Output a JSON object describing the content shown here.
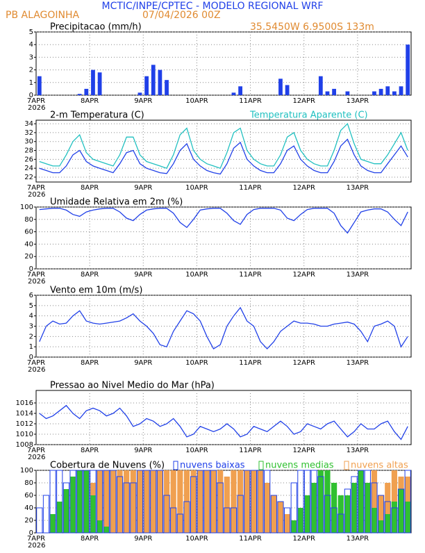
{
  "header": {
    "title": "MCTIC/INPE/CPTEC - MODELO REGIONAL WRF",
    "location": "PB ALAGOINHA",
    "date": "07/04/2026 00Z",
    "coords": "35.5450W 6.9500S 133m"
  },
  "chart_data": [
    {
      "type": "bar",
      "title": "Precipitacao (mm/h)",
      "color": "#2040e8",
      "ylim": [
        0,
        5
      ],
      "yticks": [
        0,
        1,
        2,
        3,
        4,
        5
      ],
      "grid": true,
      "year": "2026",
      "categories": [
        "7APR",
        null,
        null,
        null,
        null,
        null,
        null,
        null,
        "8APR",
        null,
        null,
        null,
        null,
        null,
        null,
        null,
        "9APR",
        null,
        null,
        null,
        null,
        null,
        null,
        null,
        "10APR",
        null,
        null,
        null,
        null,
        null,
        null,
        null,
        "11APR",
        null,
        null,
        null,
        null,
        null,
        null,
        null,
        "12APR",
        null,
        null,
        null,
        null,
        null,
        null,
        null,
        "13APR",
        null,
        null,
        null,
        null,
        null,
        null,
        null
      ],
      "values": [
        1.5,
        0,
        0,
        0,
        0,
        0,
        0.1,
        0.5,
        2,
        1.8,
        0,
        0,
        0,
        0,
        0,
        0.2,
        1.5,
        2.4,
        2,
        1.2,
        0,
        0,
        0,
        0,
        0,
        0,
        0,
        0,
        0,
        0.2,
        0.7,
        0,
        0,
        0,
        0,
        0,
        1.3,
        0.8,
        0,
        0,
        0,
        0,
        1.5,
        0.3,
        0.5,
        0,
        0.3,
        0,
        0,
        0,
        0.3,
        0.5,
        0.7,
        0.3,
        0.7,
        4
      ]
    },
    {
      "type": "line",
      "title": "2-m Temperatura (C)",
      "ylim": [
        20.9,
        34.8
      ],
      "yticks": [
        22,
        24,
        26,
        28,
        30,
        32,
        34
      ],
      "grid": true,
      "year": "2026",
      "categories": [
        "7APR",
        null,
        null,
        null,
        null,
        null,
        null,
        null,
        "8APR",
        null,
        null,
        null,
        null,
        null,
        null,
        null,
        "9APR",
        null,
        null,
        null,
        null,
        null,
        null,
        null,
        "10APR",
        null,
        null,
        null,
        null,
        null,
        null,
        null,
        "11APR",
        null,
        null,
        null,
        null,
        null,
        null,
        null,
        "12APR",
        null,
        null,
        null,
        null,
        null,
        null,
        null,
        "13APR",
        null,
        null,
        null,
        null,
        null,
        null,
        null
      ],
      "series": [
        {
          "color": "#2040e8",
          "values": [
            24,
            23.5,
            23,
            23,
            24.5,
            27,
            28,
            25.5,
            24.5,
            24,
            23.5,
            23,
            25,
            27.5,
            28,
            25,
            24,
            23.5,
            23,
            22.8,
            25,
            28,
            29.5,
            26,
            24.5,
            23.5,
            23,
            22.7,
            25,
            28.5,
            29.8,
            26,
            24.5,
            23.5,
            23,
            23,
            25,
            28,
            29,
            26,
            24.5,
            23.5,
            23,
            23,
            25.5,
            29,
            30.5,
            27,
            24.5,
            23.5,
            23,
            23,
            25,
            27,
            29,
            26.5
          ]
        },
        {
          "name": "Temperatura Aparente (C)",
          "color": "#20c0c0",
          "values": [
            25.5,
            25,
            24.5,
            24.5,
            27,
            30,
            31.5,
            27.5,
            26,
            25.5,
            25,
            24.5,
            27,
            31,
            31,
            27,
            25.5,
            25,
            24.5,
            24,
            27,
            31.5,
            33,
            28,
            26,
            25,
            24.5,
            24,
            27.5,
            32,
            33,
            28,
            26,
            25,
            24.5,
            24.5,
            27,
            31,
            32,
            28,
            26,
            25,
            24.5,
            24.5,
            28,
            32.5,
            34,
            29.5,
            26,
            25.5,
            25,
            25,
            27,
            29.5,
            32,
            28
          ]
        }
      ]
    },
    {
      "type": "line",
      "title": "Umidade Relativa em 2m (%)",
      "color": "#2040e8",
      "ylim": [
        0,
        100
      ],
      "yticks": [
        0,
        20,
        40,
        60,
        80,
        100
      ],
      "grid": true,
      "year": "2026",
      "categories": [
        "7APR",
        null,
        null,
        null,
        null,
        null,
        null,
        null,
        "8APR",
        null,
        null,
        null,
        null,
        null,
        null,
        null,
        "9APR",
        null,
        null,
        null,
        null,
        null,
        null,
        null,
        "10APR",
        null,
        null,
        null,
        null,
        null,
        null,
        null,
        "11APR",
        null,
        null,
        null,
        null,
        null,
        null,
        null,
        "12APR",
        null,
        null,
        null,
        null,
        null,
        null,
        null,
        "13APR",
        null,
        null,
        null,
        null,
        null,
        null,
        null
      ],
      "values": [
        96,
        97,
        98,
        98,
        95,
        88,
        85,
        92,
        95,
        97,
        98,
        98,
        92,
        82,
        78,
        88,
        95,
        97,
        98,
        98,
        90,
        75,
        67,
        80,
        95,
        97,
        98,
        98,
        90,
        78,
        72,
        88,
        96,
        98,
        98,
        98,
        95,
        82,
        78,
        88,
        96,
        98,
        98,
        98,
        90,
        70,
        58,
        75,
        92,
        95,
        97,
        97,
        92,
        80,
        70,
        92
      ]
    },
    {
      "type": "line",
      "title": "Vento em 10m (m/s)",
      "color": "#2040e8",
      "ylim": [
        0,
        6
      ],
      "yticks": [
        0,
        1,
        2,
        3,
        4,
        5,
        6
      ],
      "grid": true,
      "year": "2026",
      "categories": [
        "7APR",
        null,
        null,
        null,
        null,
        null,
        null,
        null,
        "8APR",
        null,
        null,
        null,
        null,
        null,
        null,
        null,
        "9APR",
        null,
        null,
        null,
        null,
        null,
        null,
        null,
        "10APR",
        null,
        null,
        null,
        null,
        null,
        null,
        null,
        "11APR",
        null,
        null,
        null,
        null,
        null,
        null,
        null,
        "12APR",
        null,
        null,
        null,
        null,
        null,
        null,
        null,
        "13APR",
        null,
        null,
        null,
        null,
        null,
        null,
        null
      ],
      "values": [
        1.5,
        3,
        3.5,
        3.2,
        3.3,
        4,
        4.5,
        3.5,
        3.3,
        3.2,
        3.3,
        3.4,
        3.5,
        3.8,
        4.2,
        3.5,
        3,
        2.3,
        1.2,
        1,
        2.5,
        3.5,
        4.5,
        4.2,
        3.5,
        2,
        0.8,
        1.2,
        3,
        4,
        4.8,
        3.5,
        3,
        1.5,
        0.8,
        1.5,
        2.5,
        3,
        3.5,
        3.3,
        3.3,
        3.2,
        3,
        3,
        3.2,
        3.3,
        3.4,
        3.2,
        2.5,
        1.5,
        3,
        3.2,
        3.5,
        3,
        1,
        2
      ]
    },
    {
      "type": "line",
      "title": "Pressao ao Nivel Medio do Mar (hPa)",
      "color": "#2040e8",
      "ylim": [
        1008,
        1018.4
      ],
      "yticks": [
        1008,
        1010,
        1012,
        1014,
        1016
      ],
      "grid": true,
      "year": "2026",
      "categories": [
        "7APR",
        null,
        null,
        null,
        null,
        null,
        null,
        null,
        "8APR",
        null,
        null,
        null,
        null,
        null,
        null,
        null,
        "9APR",
        null,
        null,
        null,
        null,
        null,
        null,
        null,
        "10APR",
        null,
        null,
        null,
        null,
        null,
        null,
        null,
        "11APR",
        null,
        null,
        null,
        null,
        null,
        null,
        null,
        "12APR",
        null,
        null,
        null,
        null,
        null,
        null,
        null,
        "13APR",
        null,
        null,
        null,
        null,
        null,
        null,
        null
      ],
      "values": [
        1014,
        1013,
        1013.5,
        1014.5,
        1015.5,
        1014,
        1013,
        1014.5,
        1015,
        1014.5,
        1013.5,
        1014,
        1015,
        1013.5,
        1011.5,
        1012,
        1013,
        1012.5,
        1011.5,
        1012,
        1013,
        1011.5,
        1009.5,
        1010,
        1011.5,
        1011,
        1010.5,
        1011,
        1012,
        1011,
        1009.5,
        1010,
        1011.5,
        1011,
        1010.5,
        1011.5,
        1012.5,
        1011.5,
        1010,
        1010.5,
        1012,
        1011.5,
        1011,
        1012,
        1012.5,
        1011,
        1009.5,
        1010.5,
        1012,
        1011,
        1011,
        1012,
        1012.5,
        1010.5,
        1009,
        1011.5
      ]
    },
    {
      "type": "bar",
      "title": "Cobertura de Nuvens (%)",
      "ylim": [
        0,
        100
      ],
      "yticks": [
        0,
        20,
        40,
        60,
        80,
        100
      ],
      "grid": true,
      "year": "2026",
      "categories": [
        "7APR",
        null,
        null,
        null,
        null,
        null,
        null,
        null,
        "8APR",
        null,
        null,
        null,
        null,
        null,
        null,
        null,
        "9APR",
        null,
        null,
        null,
        null,
        null,
        null,
        null,
        "10APR",
        null,
        null,
        null,
        null,
        null,
        null,
        null,
        "11APR",
        null,
        null,
        null,
        null,
        null,
        null,
        null,
        "12APR",
        null,
        null,
        null,
        null,
        null,
        null,
        null,
        "13APR",
        null,
        null,
        null,
        null,
        null,
        null,
        null
      ],
      "series": [
        {
          "name": "nuvens altas",
          "color": "#f0a050",
          "values": [
            0,
            0,
            0,
            0,
            10,
            30,
            40,
            60,
            80,
            100,
            100,
            100,
            100,
            100,
            100,
            100,
            100,
            100,
            100,
            100,
            100,
            100,
            100,
            100,
            100,
            100,
            100,
            100,
            90,
            100,
            100,
            100,
            100,
            100,
            80,
            60,
            50,
            30,
            20,
            10,
            0,
            0,
            0,
            0,
            0,
            0,
            0,
            0,
            0,
            40,
            100,
            60,
            80,
            100,
            90,
            90
          ]
        },
        {
          "name": "nuvens medias",
          "color": "#30c030",
          "values": [
            0,
            0,
            30,
            50,
            70,
            90,
            100,
            100,
            60,
            20,
            10,
            0,
            0,
            0,
            0,
            0,
            0,
            0,
            0,
            0,
            0,
            0,
            0,
            0,
            0,
            0,
            0,
            0,
            0,
            0,
            0,
            0,
            0,
            0,
            0,
            0,
            0,
            0,
            20,
            40,
            60,
            80,
            100,
            100,
            80,
            60,
            60,
            80,
            100,
            80,
            40,
            20,
            30,
            50,
            70,
            50
          ]
        },
        {
          "name": "nuvens baixas",
          "color": "#2040e8",
          "outline": true,
          "values": [
            40,
            60,
            100,
            100,
            80,
            100,
            100,
            100,
            100,
            100,
            100,
            100,
            90,
            80,
            80,
            100,
            100,
            100,
            100,
            60,
            40,
            30,
            50,
            90,
            100,
            100,
            100,
            80,
            40,
            40,
            60,
            100,
            100,
            100,
            100,
            60,
            50,
            40,
            80,
            100,
            100,
            100,
            90,
            60,
            40,
            30,
            70,
            90,
            100,
            100,
            80,
            60,
            50,
            40,
            70,
            100
          ]
        }
      ]
    }
  ]
}
